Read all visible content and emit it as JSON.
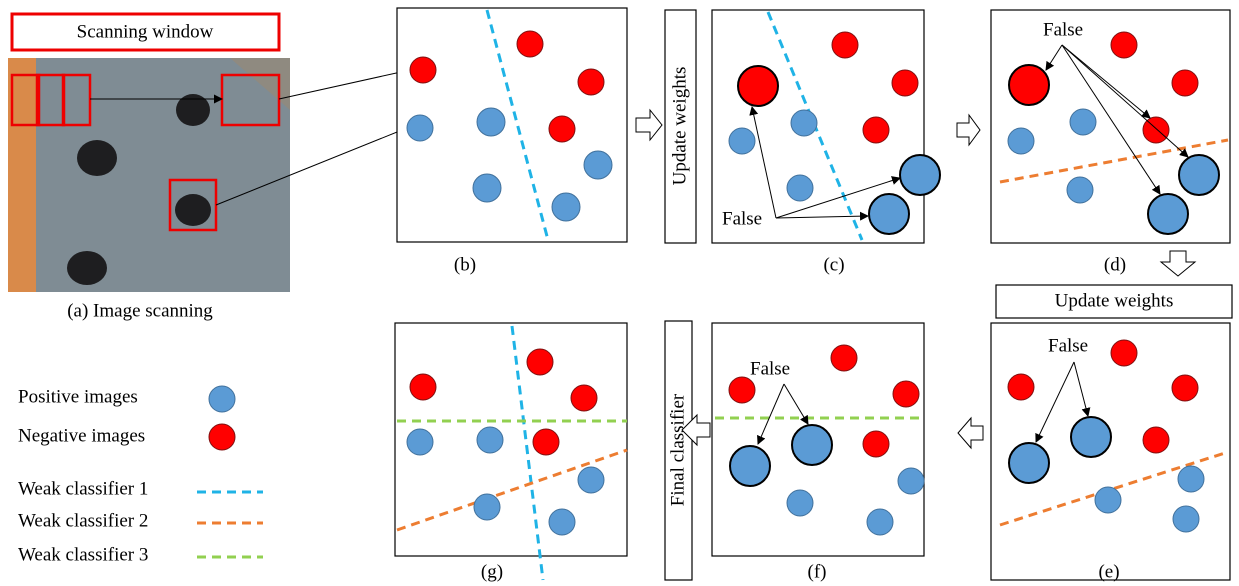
{
  "image_panel": {
    "title": "Scanning window",
    "caption": "(a) Image scanning"
  },
  "panels": [
    {
      "label": "(b)"
    },
    {
      "label": "(c)",
      "annotation": "False"
    },
    {
      "label": "(d)",
      "annotation": "False"
    },
    {
      "label": "(e)",
      "annotation": "False"
    },
    {
      "label": "(f)",
      "annotation": "False"
    },
    {
      "label": "(g)"
    }
  ],
  "steps": [
    "Update weights",
    "Update weights",
    "Final classifier"
  ],
  "legend": [
    {
      "label": "Positive images"
    },
    {
      "label": "Negative images"
    },
    {
      "label": "Weak classifier 1"
    },
    {
      "label": "Weak classifier 2"
    },
    {
      "label": "Weak classifier 3"
    }
  ]
}
